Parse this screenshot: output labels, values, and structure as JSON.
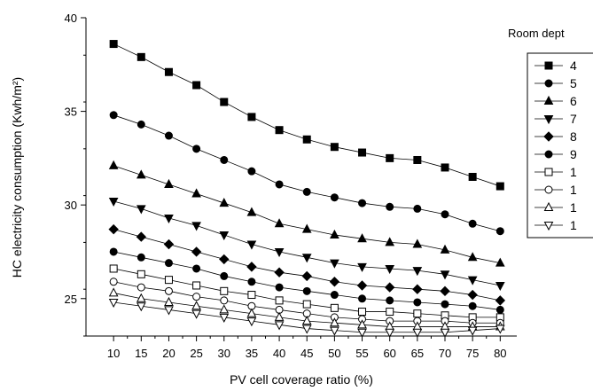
{
  "chart_data": {
    "type": "line",
    "title": "",
    "xlabel": "PV cell coverage ratio (%)",
    "ylabel": "HC electricity  consumption (Kwh/m²)",
    "x": [
      10,
      15,
      20,
      25,
      30,
      35,
      40,
      45,
      50,
      55,
      60,
      65,
      70,
      75,
      80
    ],
    "xlim": [
      5,
      83
    ],
    "ylim": [
      23,
      40
    ],
    "x_ticks": [
      "10",
      "15",
      "20",
      "25",
      "30",
      "35",
      "40",
      "45",
      "50",
      "55",
      "60",
      "65",
      "70",
      "75",
      "80"
    ],
    "y_ticks": [
      "25",
      "30",
      "35",
      "40"
    ],
    "grid": false,
    "legend": {
      "title": "Room dept",
      "placement": "right",
      "entries": [
        "4",
        "5",
        "6",
        "7",
        "8",
        "9",
        "1",
        "1",
        "1",
        "1"
      ]
    },
    "series": [
      {
        "marker": "filled-square",
        "values": [
          38.6,
          37.9,
          37.1,
          36.4,
          35.5,
          34.7,
          34.0,
          33.5,
          33.1,
          32.8,
          32.5,
          32.4,
          32.0,
          31.5,
          31.0
        ]
      },
      {
        "marker": "filled-circle",
        "values": [
          34.8,
          34.3,
          33.7,
          33.0,
          32.4,
          31.8,
          31.1,
          30.7,
          30.4,
          30.1,
          29.9,
          29.8,
          29.5,
          29.0,
          28.6
        ]
      },
      {
        "marker": "filled-triangle-up",
        "values": [
          32.1,
          31.6,
          31.1,
          30.6,
          30.1,
          29.6,
          29.0,
          28.7,
          28.4,
          28.2,
          28.0,
          27.9,
          27.6,
          27.2,
          26.9
        ]
      },
      {
        "marker": "filled-triangle-down",
        "values": [
          30.2,
          29.8,
          29.3,
          28.9,
          28.4,
          27.9,
          27.5,
          27.2,
          26.9,
          26.7,
          26.6,
          26.5,
          26.3,
          26.0,
          25.7
        ]
      },
      {
        "marker": "filled-diamond",
        "values": [
          28.7,
          28.3,
          27.9,
          27.5,
          27.1,
          26.7,
          26.4,
          26.2,
          25.9,
          25.7,
          25.6,
          25.5,
          25.4,
          25.2,
          24.9
        ]
      },
      {
        "marker": "filled-hexagon",
        "values": [
          27.5,
          27.2,
          26.9,
          26.6,
          26.2,
          25.9,
          25.6,
          25.4,
          25.2,
          25.0,
          24.9,
          24.8,
          24.7,
          24.6,
          24.4
        ]
      },
      {
        "marker": "open-square",
        "values": [
          26.6,
          26.3,
          26.0,
          25.7,
          25.4,
          25.2,
          24.9,
          24.7,
          24.5,
          24.3,
          24.3,
          24.2,
          24.1,
          24.0,
          24.0
        ]
      },
      {
        "marker": "open-circle",
        "values": [
          25.9,
          25.6,
          25.4,
          25.1,
          24.9,
          24.6,
          24.4,
          24.2,
          24.0,
          23.9,
          23.8,
          23.8,
          23.8,
          23.7,
          23.7
        ]
      },
      {
        "marker": "open-triangle-up",
        "values": [
          25.3,
          25.0,
          24.8,
          24.6,
          24.4,
          24.2,
          24.0,
          23.8,
          23.7,
          23.6,
          23.5,
          23.5,
          23.5,
          23.5,
          23.5
        ]
      },
      {
        "marker": "open-triangle-down",
        "values": [
          24.8,
          24.6,
          24.4,
          24.2,
          24.0,
          23.8,
          23.6,
          23.4,
          23.3,
          23.2,
          23.2,
          23.2,
          23.2,
          23.3,
          23.4
        ]
      }
    ]
  }
}
